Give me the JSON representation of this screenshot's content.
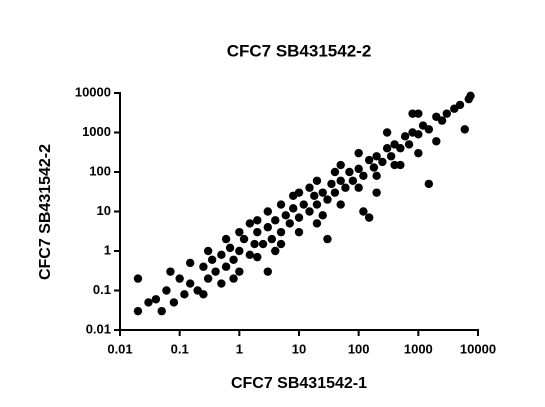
{
  "chart_data": {
    "type": "scatter",
    "title": "CFC7 SB431542-2",
    "x_label": "CFC7 SB431542-1",
    "y_label": "CFC7 SB431542-2",
    "log_x": true,
    "log_y": true,
    "color": "#000000",
    "xlim": [
      0.01,
      10000
    ],
    "ylim": [
      0.01,
      10000
    ],
    "xticks": [
      0.01,
      0.1,
      1,
      10,
      100,
      1000,
      10000
    ],
    "yticks": [
      0.01,
      0.1,
      1,
      10,
      100,
      1000,
      10000
    ],
    "x": [
      0.02,
      0.03,
      0.02,
      0.04,
      0.05,
      0.06,
      0.08,
      0.1,
      0.07,
      0.12,
      0.15,
      0.2,
      0.25,
      0.3,
      0.35,
      0.4,
      0.5,
      0.6,
      0.7,
      0.8,
      1,
      1.2,
      1.5,
      1.8,
      2,
      2.5,
      3,
      3.5,
      4,
      5,
      6,
      7,
      8,
      10,
      12,
      15,
      18,
      20,
      25,
      30,
      35,
      40,
      50,
      60,
      70,
      80,
      100,
      120,
      150,
      180,
      200,
      250,
      300,
      350,
      400,
      500,
      600,
      700,
      800,
      1000,
      1200,
      1500,
      2000,
      2500,
      3000,
      4000,
      5000,
      7000,
      7500,
      0.3,
      0.5,
      1,
      1,
      2,
      3,
      5,
      5,
      10,
      10,
      20,
      20,
      50,
      50,
      100,
      100,
      200,
      300,
      500,
      1000,
      1000,
      1500,
      120,
      150,
      200,
      40,
      8,
      2,
      0.8,
      0.15,
      0.6,
      30,
      3,
      6000,
      2000,
      15,
      25,
      4,
      1.5,
      0.25,
      400,
      800
    ],
    "y": [
      0.2,
      0.05,
      0.03,
      0.06,
      0.03,
      0.1,
      0.05,
      0.2,
      0.3,
      0.08,
      0.15,
      0.1,
      0.4,
      0.2,
      0.6,
      0.3,
      0.8,
      0.4,
      1.2,
      0.6,
      1,
      2,
      0.8,
      1.5,
      3,
      1.5,
      4,
      2,
      6,
      3,
      8,
      5,
      12,
      7,
      15,
      10,
      25,
      15,
      30,
      20,
      50,
      30,
      60,
      40,
      100,
      60,
      120,
      80,
      200,
      130,
      250,
      180,
      400,
      250,
      500,
      400,
      800,
      500,
      1000,
      900,
      1500,
      1200,
      2500,
      2000,
      3000,
      4000,
      5000,
      7000,
      8500,
      1,
      0.15,
      0.3,
      3,
      0.7,
      10,
      15,
      1.5,
      30,
      3,
      60,
      5,
      150,
      15,
      300,
      40,
      80,
      1000,
      150,
      300,
      3000,
      50,
      10,
      7,
      30,
      100,
      25,
      6,
      0.2,
      0.5,
      2,
      2,
      0.3,
      1200,
      600,
      40,
      8,
      1,
      5,
      0.08,
      150,
      3000
    ]
  }
}
